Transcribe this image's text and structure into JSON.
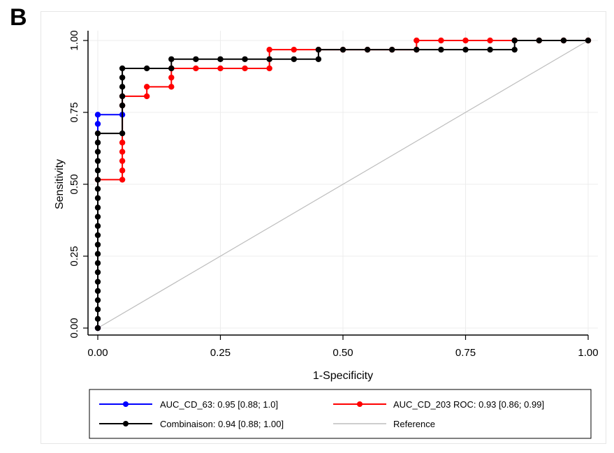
{
  "panel_label": "B",
  "chart_data": {
    "type": "line",
    "title": "",
    "xlabel": "1-Specificity",
    "ylabel": "Sensitivity",
    "xlim": [
      0,
      1
    ],
    "ylim": [
      0,
      1
    ],
    "xticks": [
      "0.00",
      "0.25",
      "0.50",
      "0.75",
      "1.00"
    ],
    "yticks": [
      "0.00",
      "0.25",
      "0.50",
      "0.75",
      "1.00"
    ],
    "grid": true,
    "legend_position": "bottom",
    "series": [
      {
        "name": "AUC_CD_63: 0.95 [0.88; 1.0]",
        "color": "#0000ff",
        "marker": "circle",
        "x": [
          0,
          0,
          0,
          0.05
        ],
        "y": [
          0,
          0.71,
          0.742,
          0.742
        ]
      },
      {
        "name": "AUC_CD_203 ROC: 0.93 [0.86; 0.99]",
        "color": "#ff0000",
        "marker": "circle",
        "x": [
          0,
          0,
          0,
          0.05,
          0.05,
          0.05,
          0.05,
          0.05,
          0.05,
          0.05,
          0.1,
          0.1,
          0.15,
          0.15,
          0.15,
          0.2,
          0.25,
          0.3,
          0.35,
          0.35,
          0.4,
          0.45,
          0.5,
          0.55,
          0.6,
          0.65,
          0.65,
          0.7,
          0.75,
          0.8,
          0.85,
          0.9,
          0.95,
          1.0
        ],
        "y": [
          0,
          0.516,
          0.516,
          0.516,
          0.548,
          0.581,
          0.613,
          0.645,
          0.774,
          0.806,
          0.806,
          0.839,
          0.839,
          0.871,
          0.903,
          0.903,
          0.903,
          0.903,
          0.903,
          0.968,
          0.968,
          0.968,
          0.968,
          0.968,
          0.968,
          0.968,
          1.0,
          1.0,
          1.0,
          1.0,
          1.0,
          1.0,
          1.0,
          1.0
        ]
      },
      {
        "name": "Combinaison: 0.94 [0.88; 1.00]",
        "color": "#000000",
        "marker": "circle",
        "x": [
          0,
          0,
          0,
          0,
          0,
          0,
          0,
          0,
          0,
          0,
          0,
          0,
          0,
          0,
          0,
          0,
          0,
          0,
          0,
          0,
          0,
          0,
          0.05,
          0.05,
          0.05,
          0.05,
          0.05,
          0.05,
          0.1,
          0.15,
          0.15,
          0.2,
          0.25,
          0.3,
          0.35,
          0.4,
          0.45,
          0.45,
          0.5,
          0.55,
          0.6,
          0.65,
          0.7,
          0.75,
          0.8,
          0.85,
          0.85,
          0.9,
          0.95,
          1.0
        ],
        "y": [
          0,
          0.032,
          0.065,
          0.097,
          0.129,
          0.161,
          0.194,
          0.226,
          0.258,
          0.29,
          0.323,
          0.355,
          0.387,
          0.419,
          0.452,
          0.484,
          0.516,
          0.548,
          0.581,
          0.613,
          0.645,
          0.677,
          0.677,
          0.774,
          0.806,
          0.839,
          0.871,
          0.903,
          0.903,
          0.903,
          0.935,
          0.935,
          0.935,
          0.935,
          0.935,
          0.935,
          0.935,
          0.968,
          0.968,
          0.968,
          0.968,
          0.968,
          0.968,
          0.968,
          0.968,
          0.968,
          1.0,
          1.0,
          1.0,
          1.0
        ]
      },
      {
        "name": "Reference",
        "color": "#bdbdbd",
        "marker": "none",
        "x": [
          0,
          1
        ],
        "y": [
          0,
          1
        ]
      }
    ]
  }
}
